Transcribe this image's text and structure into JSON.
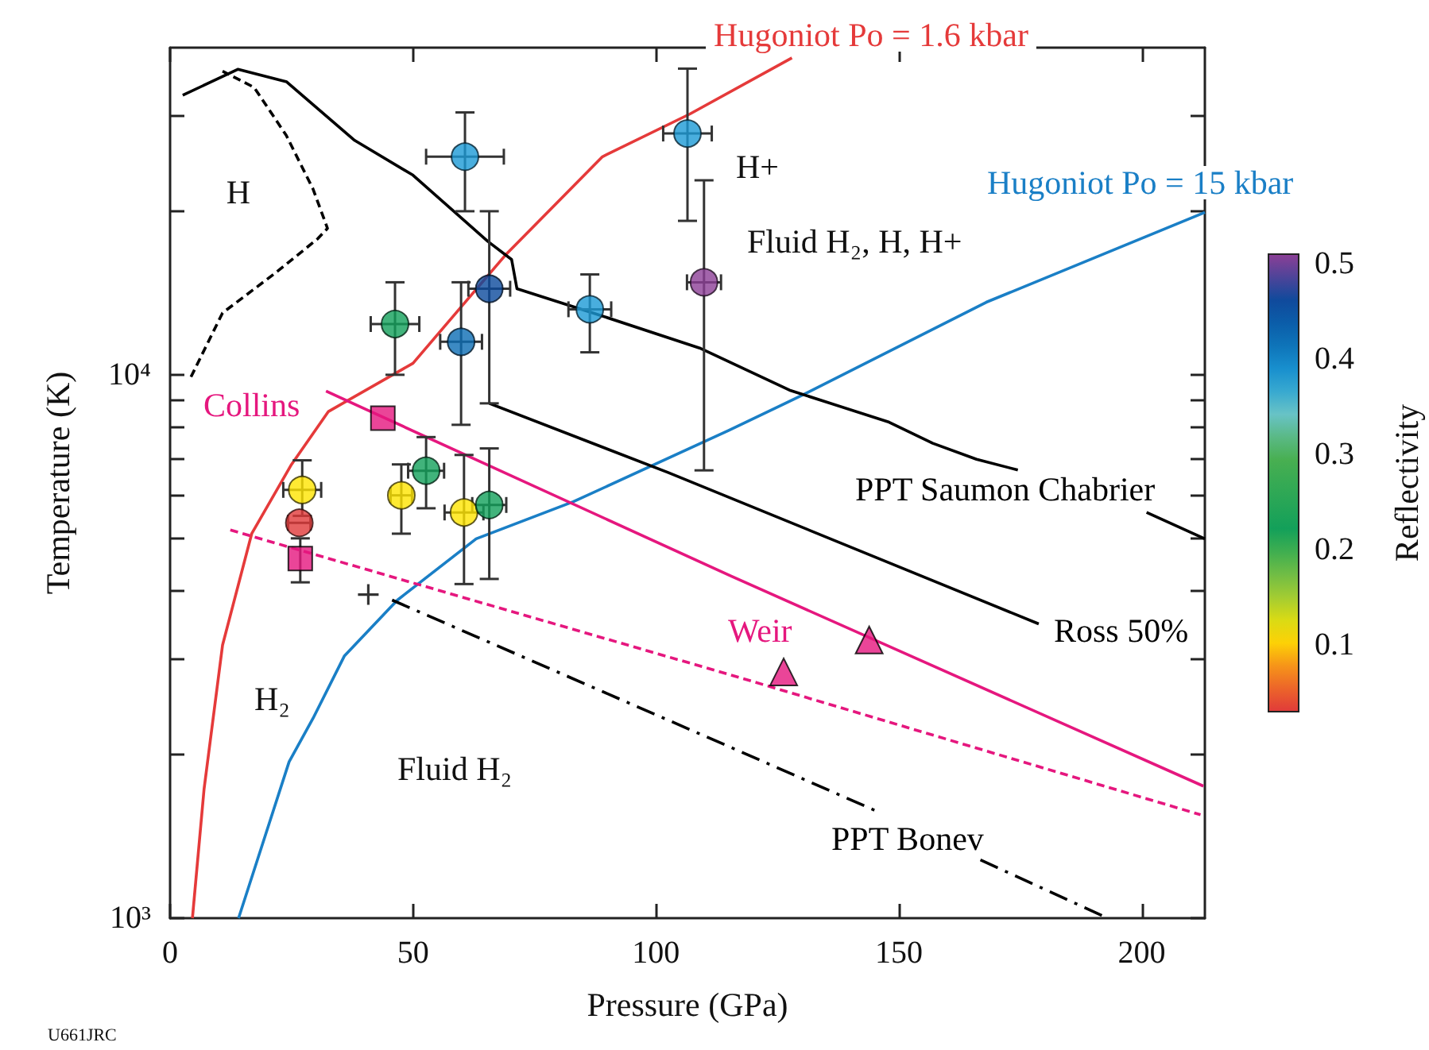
{
  "chart_data": {
    "type": "line",
    "xlabel": "Pressure (GPa)",
    "ylabel": "Temperature (K)",
    "clabel": "Reflectivity",
    "xlim": [
      0,
      213
    ],
    "xticks": [
      0,
      50,
      100,
      150,
      200
    ],
    "ylim": [
      1000,
      40000
    ],
    "log": "y",
    "yticks": [
      {
        "value": 1000,
        "label": "10³"
      },
      {
        "value": 2000,
        "label": null
      },
      {
        "value": 3000,
        "label": null
      },
      {
        "value": 4000,
        "label": null
      },
      {
        "value": 5000,
        "label": null
      },
      {
        "value": 6000,
        "label": null
      },
      {
        "value": 7000,
        "label": null
      },
      {
        "value": 8000,
        "label": null
      },
      {
        "value": 9000,
        "label": null
      },
      {
        "value": 10000,
        "label": "10⁴"
      },
      {
        "value": 20000,
        "label": null
      },
      {
        "value": 30000,
        "label": null
      }
    ],
    "clim": [
      0.03,
      0.51
    ],
    "cticks": [
      0.1,
      0.2,
      0.3,
      0.4,
      0.5
    ],
    "grid": false,
    "annotations": [
      "H",
      "H+",
      "Fluid H₂, H, H+",
      "H₂",
      "Fluid H₂",
      "U661JRC"
    ],
    "series": [
      {
        "name": "Hugoniot Po = 1.6 kbar",
        "color": "#e53a3a",
        "line_style": "solid",
        "marker": "none",
        "x": [
          4.6,
          7,
          10.8,
          16.8,
          25,
          32.6,
          50,
          69,
          89,
          107,
          128
        ],
        "values": [
          1000,
          1730,
          3180,
          5100,
          6840,
          8560,
          10500,
          16600,
          25200,
          30200,
          38300
        ]
      },
      {
        "name": "Hugoniot Po = 15 kbar",
        "color": "#1a7fc6",
        "line_style": "solid",
        "marker": "none",
        "x": [
          14.1,
          24.5,
          29.4,
          35.9,
          46.8,
          63,
          83,
          115,
          130,
          168,
          213
        ],
        "values": [
          1000,
          1940,
          2330,
          3040,
          3850,
          4990,
          5840,
          7900,
          9160,
          13600,
          19900
        ]
      },
      {
        "name": "PPT Saumon Chabrier",
        "color": "#000000",
        "line_style": "solid",
        "marker": "none",
        "x": [
          2.6,
          14,
          24,
          38,
          50,
          65.4,
          70.3,
          71.4,
          87,
          109,
          127.5,
          148,
          157,
          166,
          174.5,
          null,
          201,
          213
        ],
        "values": [
          32700,
          36500,
          34600,
          27000,
          23300,
          17600,
          16300,
          14400,
          13000,
          11200,
          9370,
          8180,
          7480,
          6990,
          6680,
          null,
          5580,
          4990
        ]
      },
      {
        "name": "Ross 50%",
        "color": "#000000",
        "line_style": "solid",
        "marker": "none",
        "x": [
          65.7,
          102.5,
          178.8
        ],
        "values": [
          8860,
          6610,
          3480
        ]
      },
      {
        "name": "PPT Bonev",
        "color": "#000000",
        "line_style": "dashdot",
        "marker": "none",
        "x": [
          45.7,
          115,
          145,
          null,
          166.8,
          193
        ],
        "values": [
          3850,
          2070,
          1580,
          null,
          1280,
          1000
        ]
      },
      {
        "name": "Collins",
        "color": "#e5177e",
        "line_style": "solid",
        "marker": "none",
        "x": [
          32.1,
          115.5,
          212.7
        ],
        "values": [
          9330,
          4260,
          1750
        ]
      },
      {
        "type": "scatter",
        "name": "Weir",
        "color": "#e5177e",
        "marker": "triangle",
        "x": [
          126.3,
          143.9
        ],
        "values": [
          2840,
          3250
        ]
      },
      {
        "color": "#e5177e",
        "line_style": "dashed",
        "marker": "none",
        "x": [
          12.4,
          115,
          212.1
        ],
        "values": [
          5180,
          2810,
          1550
        ]
      },
      {
        "color": "#000000",
        "line_style": "dashed",
        "marker": "none",
        "x": [
          4.3,
          10.8,
          21.7,
          30.4,
          32.4,
          29.4,
          23.9,
          17.3,
          10.8
        ],
        "values": [
          9910,
          13000,
          15400,
          17800,
          18600,
          22000,
          27600,
          33800,
          36200
        ]
      },
      {
        "type": "scatter",
        "color": "#e5177e",
        "marker": "square",
        "x": [
          43.8,
          26.8
        ],
        "values": [
          8320,
          4590
        ],
        "errors": [
          null,
          [
            4150,
            5000
          ]
        ]
      },
      {
        "type": "scatter",
        "color": "#000000",
        "marker": "cross",
        "x": [
          40.8
        ],
        "values": [
          3940
        ]
      },
      {
        "type": "scatter",
        "marker": "circle",
        "x": [
          60.7,
          106.5,
          46.3,
          59.9,
          65.7,
          86.4,
          109.9,
          27.2,
          26.6,
          47.6,
          52.7,
          60.5,
          65.7
        ],
        "values": [
          25200,
          27800,
          12400,
          11500,
          14400,
          13200,
          14800,
          6140,
          5340,
          6000,
          6660,
          5580,
          5760
        ],
        "cvalues": [
          0.38,
          0.38,
          0.22,
          0.42,
          0.46,
          0.38,
          0.51,
          0.11,
          0.03,
          0.11,
          0.22,
          0.11,
          0.22
        ],
        "colors": [
          "#1c9ad6",
          "#1c9ad6",
          "#12a05a",
          "#0b6db4",
          "#0b4a9c",
          "#1c9ad6",
          "#8c3f96",
          "#ffe500",
          "#e03a3a",
          "#ffe500",
          "#12a05a",
          "#ffe500",
          "#12a05a"
        ],
        "errors": [
          [
            20000,
            30400
          ],
          [
            19200,
            36600
          ],
          [
            10000,
            14800
          ],
          [
            8090,
            14800
          ],
          [
            8860,
            20000
          ],
          [
            11000,
            15300
          ],
          [
            6670,
            22800
          ],
          [
            5500,
            6960
          ],
          null,
          [
            5100,
            6840
          ],
          [
            5680,
            7680
          ],
          [
            4120,
            7120
          ],
          [
            4210,
            7320
          ]
        ],
        "xerrors": [
          8,
          5,
          5,
          4.3,
          4.3,
          4.4,
          3.5,
          3.9,
          2.3,
          2.2,
          3.7,
          4,
          3.5
        ]
      }
    ]
  }
}
